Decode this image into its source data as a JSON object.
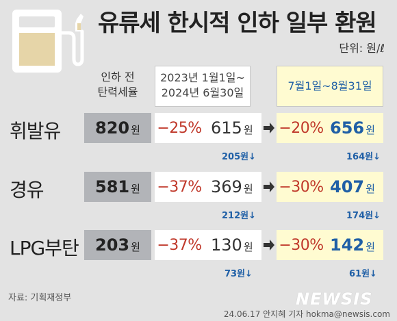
{
  "title": "유류세 한시적 인하 일부 환원",
  "unit": "단위: 원/ℓ",
  "headers": {
    "base_line1": "인하 전",
    "base_line2": "탄력세율",
    "mid_line1": "2023년 1월1일~",
    "mid_line2": "2024년 6월30일",
    "new": "7월1일~8월31일"
  },
  "won": "원",
  "icons": [
    "fuel-pump-icon",
    "right-arrow-icon"
  ],
  "colors": {
    "background": "#e3e3e3",
    "base_box": "#b2b4b8",
    "new_box": "#fffbd1",
    "cut_red": "#c0392b",
    "accent_blue": "#1f5fa6"
  },
  "chart_data": {
    "type": "table",
    "title": "유류세 한시적 인하 일부 환원",
    "unit": "원/ℓ",
    "columns": [
      "인하 전 탄력세율",
      "2023년 1월1일~2024년 6월30일",
      "7월1일~8월31일"
    ],
    "rows": [
      {
        "fuel": "휘발유",
        "base": "820",
        "mid_pct": "−25%",
        "mid": "615",
        "mid_drop": "205원↓",
        "new_pct": "−20%",
        "new": "656",
        "new_drop": "164원↓"
      },
      {
        "fuel": "경유",
        "base": "581",
        "mid_pct": "−37%",
        "mid": "369",
        "mid_drop": "212원↓",
        "new_pct": "−30%",
        "new": "407",
        "new_drop": "174원↓"
      },
      {
        "fuel": "LPG부탄",
        "base": "203",
        "mid_pct": "−37%",
        "mid": "130",
        "mid_drop": "73원↓",
        "new_pct": "−30%",
        "new": "142",
        "new_drop": "61원↓"
      }
    ]
  },
  "source": "자료: 기획재정부",
  "logo": "NEWSIS",
  "credit": "24.06.17 안지혜 기자 hokma@newsis.com"
}
